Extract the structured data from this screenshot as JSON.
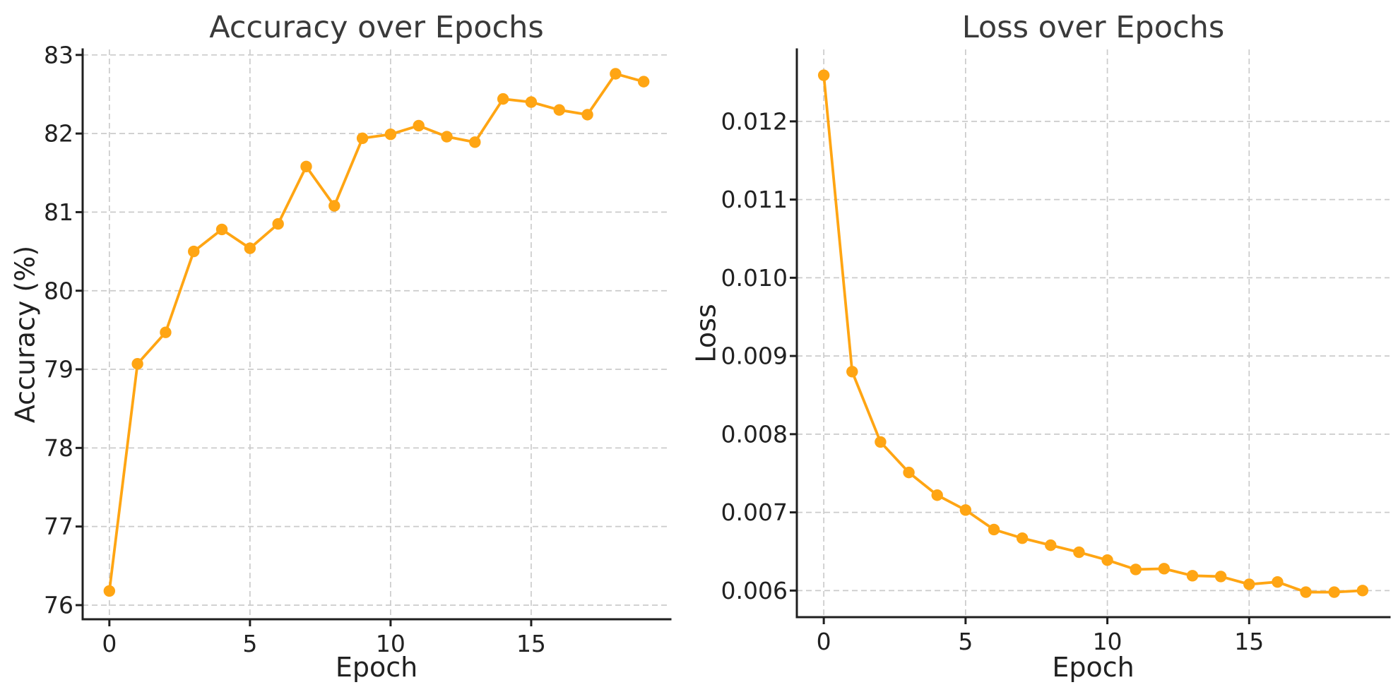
{
  "style": {
    "background": "#ffffff",
    "accent_color": "#FFA513",
    "grid_color": "#cbcbcb",
    "axis_color": "#1f1f1f",
    "text_color": "#212121",
    "title_color": "#3a3a3a"
  },
  "chart_data": [
    {
      "type": "line",
      "name": "accuracy",
      "title": "Accuracy over Epochs",
      "xlabel": "Epoch",
      "ylabel": "Accuracy (%)",
      "x": [
        0,
        1,
        2,
        3,
        4,
        5,
        6,
        7,
        8,
        9,
        10,
        11,
        12,
        13,
        14,
        15,
        16,
        17,
        18,
        19
      ],
      "values": [
        76.18,
        79.07,
        79.47,
        80.5,
        80.78,
        80.54,
        80.85,
        81.58,
        81.08,
        81.94,
        81.99,
        82.1,
        81.96,
        81.89,
        82.44,
        82.4,
        82.3,
        82.24,
        82.76,
        82.66
      ],
      "xlim": [
        -0.95,
        19.95
      ],
      "ylim": [
        75.82,
        83.07
      ],
      "xticks": [
        0,
        5,
        10,
        15
      ],
      "xtick_labels": [
        "0",
        "5",
        "10",
        "15"
      ],
      "yticks": [
        76,
        77,
        78,
        79,
        80,
        81,
        82,
        83
      ],
      "ytick_labels": [
        "76",
        "77",
        "78",
        "79",
        "80",
        "81",
        "82",
        "83"
      ],
      "grid": true,
      "grid_style": "dashed",
      "legend": "none",
      "marker": "circle",
      "line_color": "#FFA513"
    },
    {
      "type": "line",
      "name": "loss",
      "title": "Loss over Epochs",
      "xlabel": "Epoch",
      "ylabel": "Loss",
      "x": [
        0,
        1,
        2,
        3,
        4,
        5,
        6,
        7,
        8,
        9,
        10,
        11,
        12,
        13,
        14,
        15,
        16,
        17,
        18,
        19
      ],
      "values": [
        0.01259,
        0.0088,
        0.0079,
        0.00751,
        0.00722,
        0.00703,
        0.00678,
        0.00667,
        0.00658,
        0.00649,
        0.00639,
        0.00627,
        0.00628,
        0.00619,
        0.00618,
        0.00608,
        0.00611,
        0.00598,
        0.00598,
        0.006
      ],
      "xlim": [
        -0.95,
        19.95
      ],
      "ylim": [
        0.00566,
        0.01292
      ],
      "xticks": [
        0,
        5,
        10,
        15
      ],
      "xtick_labels": [
        "0",
        "5",
        "10",
        "15"
      ],
      "yticks": [
        0.006,
        0.007,
        0.008,
        0.009,
        0.01,
        0.011,
        0.012
      ],
      "ytick_labels": [
        "0.006",
        "0.007",
        "0.008",
        "0.009",
        "0.010",
        "0.011",
        "0.012"
      ],
      "grid": true,
      "grid_style": "dashed",
      "legend": "none",
      "marker": "circle",
      "line_color": "#FFA513"
    }
  ]
}
